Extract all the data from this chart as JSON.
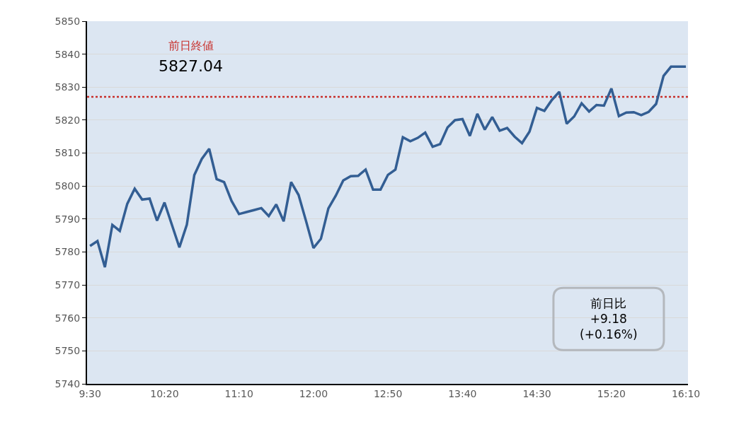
{
  "chart_data": {
    "type": "line",
    "x": [
      9.5,
      9.5833,
      9.6667,
      9.75,
      9.8333,
      9.9167,
      10,
      10.0833,
      10.1667,
      10.25,
      10.3333,
      10.4167,
      10.5,
      10.5833,
      10.6667,
      10.75,
      10.8333,
      10.9167,
      11,
      11.0833,
      11.1667,
      11.25,
      11.3333,
      11.4167,
      11.5,
      11.5833,
      11.6667,
      11.75,
      11.8333,
      11.9167,
      12,
      12.0833,
      12.1667,
      12.25,
      12.3333,
      12.4167,
      12.5,
      12.5833,
      12.6667,
      12.75,
      12.8333,
      12.9167,
      13,
      13.0833,
      13.1667,
      13.25,
      13.3333,
      13.4167,
      13.5,
      13.5833,
      13.6667,
      13.75,
      13.8333,
      13.9167,
      14,
      14.0833,
      14.1667,
      14.25,
      14.3333,
      14.4167,
      14.5,
      14.5833,
      14.6667,
      14.75,
      14.8333,
      14.9167,
      15,
      15.0833,
      15.1667,
      15.25,
      15.3333,
      15.4167,
      15.5,
      15.5833,
      15.6667,
      15.75,
      15.8333,
      15.9167,
      16,
      16.0833,
      16.1667
    ],
    "series": [
      {
        "color": "#335e93",
        "values": [
          5781.8,
          5783.3,
          5775.4,
          5788.2,
          5786.4,
          5794.6,
          5799.2,
          5795.9,
          5796.2,
          5789.5,
          5795.0,
          5788.2,
          5781.4,
          5788.3,
          5803.3,
          5808.2,
          5811.3,
          5802.1,
          5801.2,
          5795.5,
          5791.5,
          5792.1,
          5792.7,
          5793.3,
          5790.9,
          5794.4,
          5789.3,
          5801.2,
          5797.3,
          5789.4,
          5781.2,
          5784.0,
          5793.2,
          5797.1,
          5801.7,
          5803.0,
          5803.1,
          5805.0,
          5798.9,
          5798.9,
          5803.4,
          5805.0,
          5814.8,
          5813.6,
          5814.6,
          5816.2,
          5811.9,
          5812.7,
          5817.8,
          5820.0,
          5820.3,
          5815.2,
          5821.9,
          5817.1,
          5820.9,
          5816.8,
          5817.6,
          5815.0,
          5813.0,
          5816.5,
          5823.7,
          5822.8,
          5826.1,
          5828.6,
          5818.9,
          5821.1,
          5825.1,
          5822.6,
          5824.6,
          5824.4,
          5829.6,
          5821.2,
          5822.3,
          5822.4,
          5821.5,
          5822.5,
          5824.9,
          5833.4,
          5836.2,
          5836.2,
          5836.2
        ]
      }
    ],
    "xlim": [
      9.467,
      16.19
    ],
    "xticks": [
      {
        "value": 9.5,
        "label": "9:30"
      },
      {
        "value": 10.3333,
        "label": "10:20"
      },
      {
        "value": 11.1667,
        "label": "11:10"
      },
      {
        "value": 12,
        "label": "12:00"
      },
      {
        "value": 12.8333,
        "label": "12:50"
      },
      {
        "value": 13.6667,
        "label": "13:40"
      },
      {
        "value": 14.5,
        "label": "14:30"
      },
      {
        "value": 15.3333,
        "label": "15:20"
      },
      {
        "value": 16.1667,
        "label": "16:10"
      }
    ],
    "ylim": [
      5740,
      5850
    ],
    "yticks": [
      5740,
      5750,
      5760,
      5770,
      5780,
      5790,
      5800,
      5810,
      5820,
      5830,
      5840,
      5850
    ],
    "ref_lines": [
      {
        "axis": "y",
        "value": 5827.04,
        "label": "前日終値",
        "color": "#c8302c",
        "line_style": "dotted"
      }
    ],
    "annotations": [
      "5827.04",
      "前日比\n+9.18\n(+0.16%)"
    ],
    "grid": "y"
  }
}
